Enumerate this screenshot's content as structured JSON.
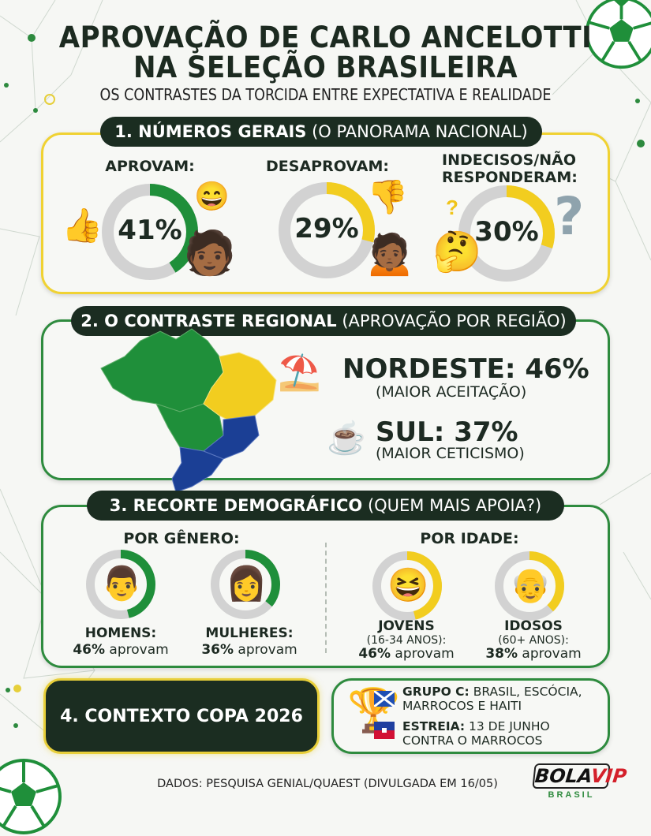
{
  "header": {
    "title_line1": "APROVAÇÃO DE CARLO ANCELOTTI",
    "title_line2": "NA SELEÇÃO BRASILEIRA",
    "subtitle": "OS CONTRASTES DA TORCIDA ENTRE EXPECTATIVA E REALIDADE"
  },
  "section1": {
    "title_bold": "1. NÚMEROS GERAIS",
    "title_rest": "(O PANORAMA NACIONAL)",
    "items": [
      {
        "label": "APROVAM:",
        "value": "41%",
        "fraction": 0.41,
        "color": "#1f8f3a"
      },
      {
        "label": "DESAPROVAM:",
        "value": "29%",
        "fraction": 0.29,
        "color": "#f2cd1f"
      },
      {
        "label_line1": "INDECISOS/NÃO",
        "label_line2": "RESPONDERAM:",
        "value": "30%",
        "fraction": 0.3,
        "color": "#f2cd1f"
      }
    ]
  },
  "section2": {
    "title_bold": "2. O CONTRASTE REGIONAL",
    "title_rest": "(APROVAÇÃO POR REGIÃO)",
    "nordeste": {
      "label": "NORDESTE: 46%",
      "note": "(MAIOR ACEITAÇÃO)"
    },
    "sul": {
      "label": "SUL: 37%",
      "note": "(MAIOR CETICISMO)"
    }
  },
  "section3": {
    "title_bold": "3. RECORTE DEMOGRÁFICO",
    "title_rest": "(QUEM MAIS APOIA?)",
    "genero_label": "POR GÊNERO:",
    "idade_label": "POR IDADE:",
    "groups": [
      {
        "name": "HOMENS:",
        "value": "46%",
        "suffix": " aprovam",
        "fraction": 0.46,
        "color": "#1f8f3a"
      },
      {
        "name": "MULHERES:",
        "value": "36%",
        "suffix": " aprovam",
        "fraction": 0.36,
        "color": "#1f8f3a"
      },
      {
        "name": "JOVENS",
        "range": "(16-34 ANOS):",
        "value": "46%",
        "suffix": " aprovam",
        "fraction": 0.46,
        "color": "#f2cd1f"
      },
      {
        "name": "IDOSOS",
        "range": "(60+ ANOS):",
        "value": "38%",
        "suffix": " aprovam",
        "fraction": 0.38,
        "color": "#f2cd1f"
      }
    ]
  },
  "section4": {
    "title": "4. CONTEXTO COPA 2026",
    "grupo_bold": "GRUPO C:",
    "grupo_text": " BRASIL, ESCÓCIA, MARROCOS E HAITI",
    "estreia_bold": "ESTREIA:",
    "estreia_text": " 13 DE JUNHO CONTRA O MARROCOS"
  },
  "footer": {
    "source": "DADOS: PESQUISA GENIAL/QUAEST (DIVULGADA EM 16/05)",
    "logo_main": "BOLA",
    "logo_accent": "VIP",
    "logo_sub": "BRASIL"
  }
}
